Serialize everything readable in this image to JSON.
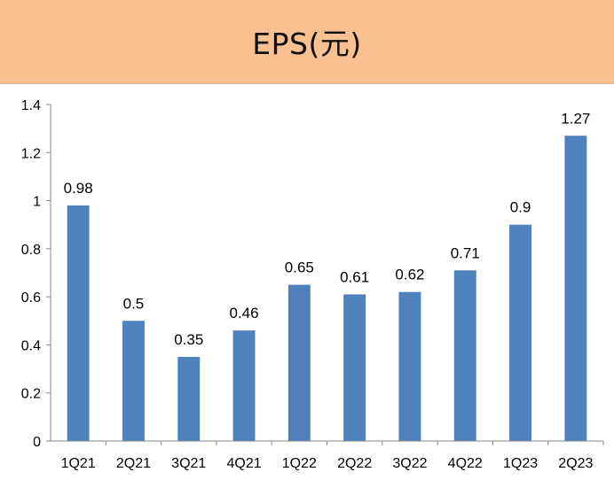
{
  "title_bar": {
    "title": "EPS(元)"
  },
  "colors": {
    "title_band": "#f9c092",
    "bar": "#4f81bd",
    "axis": "#868686"
  },
  "chart_data": {
    "type": "bar",
    "title": "EPS(元)",
    "xlabel": "",
    "ylabel": "",
    "categories": [
      "1Q21",
      "2Q21",
      "3Q21",
      "4Q21",
      "1Q22",
      "2Q22",
      "3Q22",
      "4Q22",
      "1Q23",
      "2Q23"
    ],
    "values": [
      0.98,
      0.5,
      0.35,
      0.46,
      0.65,
      0.61,
      0.62,
      0.71,
      0.9,
      1.27
    ],
    "value_labels": [
      "0.98",
      "0.5",
      "0.35",
      "0.46",
      "0.65",
      "0.61",
      "0.62",
      "0.71",
      "0.9",
      "1.27"
    ],
    "ylim": [
      0,
      1.4
    ],
    "yticks": [
      "0",
      "0.2",
      "0.4",
      "0.6",
      "0.8",
      "1",
      "1.2",
      "1.4"
    ],
    "ytick_values": [
      0,
      0.2,
      0.4,
      0.6,
      0.8,
      1,
      1.2,
      1.4
    ],
    "grid": false,
    "legend": "none"
  }
}
